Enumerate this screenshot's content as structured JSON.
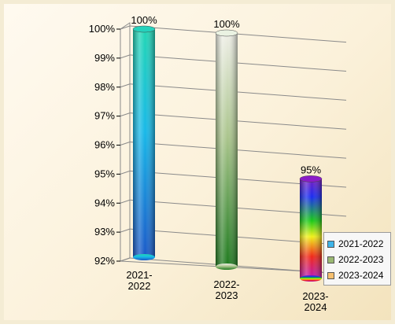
{
  "chart_data": {
    "type": "bar",
    "style": "3d-cylinder",
    "categories": [
      "2021-2022",
      "2022-2023",
      "2023-2024"
    ],
    "category_labels": [
      [
        "2021-",
        "2022"
      ],
      [
        "2022-",
        "2023"
      ],
      [
        "2023-",
        "2024"
      ]
    ],
    "series": [
      {
        "name": "2021-2022",
        "values": [
          100,
          null,
          null
        ],
        "color": "#2aa9e0"
      },
      {
        "name": "2022-2023",
        "values": [
          null,
          100,
          null
        ],
        "color": "#9ab872"
      },
      {
        "name": "2023-2024",
        "values": [
          null,
          null,
          95
        ],
        "color": "#f0a030"
      }
    ],
    "values": [
      100,
      100,
      95
    ],
    "data_labels": [
      "100%",
      "100%",
      "95%"
    ],
    "y_ticks": [
      "92%",
      "93%",
      "94%",
      "95%",
      "96%",
      "97%",
      "98%",
      "99%",
      "100%"
    ],
    "ylim": [
      92,
      100
    ],
    "y_unit": "%",
    "xlabel": "",
    "ylabel": "",
    "grid": true,
    "legend_position": "right-bottom"
  }
}
